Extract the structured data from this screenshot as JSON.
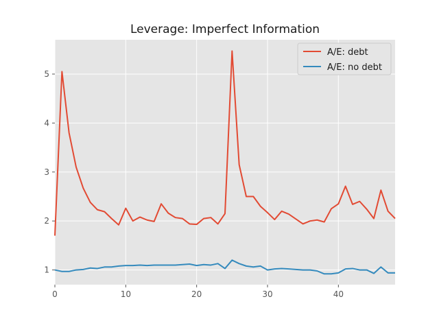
{
  "colors": {
    "background": "#ffffff",
    "plot_background": "#e5e5e5",
    "grid": "#ffffff",
    "series_debt": "#e24a33",
    "series_no_debt": "#348abd"
  },
  "chart_data": {
    "type": "line",
    "title": "Leverage: Imperfect Information",
    "xlabel": "",
    "ylabel": "",
    "xlim": [
      0,
      48
    ],
    "ylim": [
      0.7,
      5.7
    ],
    "xticks": [
      0,
      10,
      20,
      30,
      40
    ],
    "yticks": [
      1,
      2,
      3,
      4,
      5
    ],
    "grid": true,
    "legend_position": "top-right",
    "x": [
      0,
      1,
      2,
      3,
      4,
      5,
      6,
      7,
      8,
      9,
      10,
      11,
      12,
      13,
      14,
      15,
      16,
      17,
      18,
      19,
      20,
      21,
      22,
      23,
      24,
      25,
      26,
      27,
      28,
      29,
      30,
      31,
      32,
      33,
      34,
      35,
      36,
      37,
      38,
      39,
      40,
      41,
      42,
      43,
      44,
      45,
      46,
      47,
      48
    ],
    "series": [
      {
        "name": "A/E: debt",
        "color": "#e24a33",
        "values": [
          1.7,
          5.05,
          3.8,
          3.1,
          2.67,
          2.38,
          2.23,
          2.19,
          2.05,
          1.92,
          2.26,
          2.0,
          2.08,
          2.02,
          1.99,
          2.35,
          2.16,
          2.07,
          2.05,
          1.94,
          1.93,
          2.05,
          2.07,
          1.94,
          2.15,
          5.47,
          3.15,
          2.5,
          2.5,
          2.3,
          2.17,
          2.03,
          2.2,
          2.14,
          2.04,
          1.94,
          2.0,
          2.02,
          1.98,
          2.25,
          2.35,
          2.71,
          2.34,
          2.4,
          2.24,
          2.05,
          2.63,
          2.2,
          2.05
        ]
      },
      {
        "name": "A/E: no debt",
        "color": "#348abd",
        "values": [
          1.0,
          0.97,
          0.97,
          1.0,
          1.01,
          1.04,
          1.03,
          1.06,
          1.06,
          1.08,
          1.09,
          1.09,
          1.1,
          1.09,
          1.1,
          1.1,
          1.1,
          1.1,
          1.11,
          1.12,
          1.09,
          1.11,
          1.1,
          1.13,
          1.03,
          1.2,
          1.13,
          1.08,
          1.06,
          1.08,
          1.0,
          1.02,
          1.03,
          1.02,
          1.01,
          1.0,
          1.0,
          0.98,
          0.92,
          0.92,
          0.94,
          1.02,
          1.03,
          1.0,
          1.0,
          0.93,
          1.06,
          0.94,
          0.94
        ]
      }
    ]
  }
}
